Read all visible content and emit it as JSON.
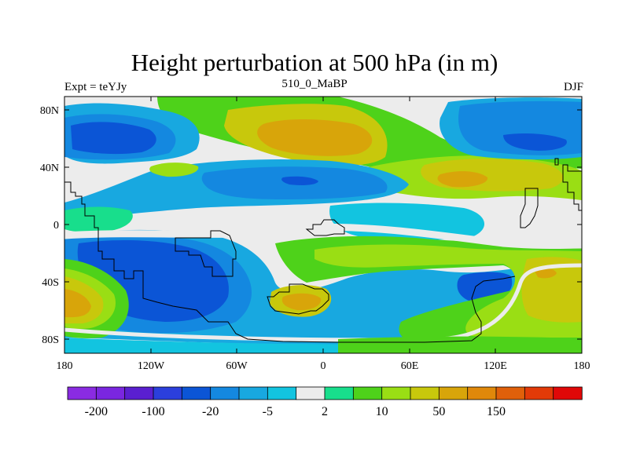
{
  "title": "Height perturbation at 500 hPa (in m)",
  "subtitle_left": "Expt = teYJy",
  "subtitle_center": "510_0_MaBP",
  "subtitle_right": "DJF",
  "map": {
    "y_ticks": [
      "80N",
      "40N",
      "0",
      "40S",
      "80S"
    ],
    "x_ticks": [
      "180",
      "120W",
      "60W",
      "0",
      "60E",
      "120E",
      "180"
    ]
  },
  "colorbar": {
    "colors": [
      "#8a2be2",
      "#7a26e0",
      "#5a1fd0",
      "#2b3fdc",
      "#0b55d6",
      "#1488e0",
      "#18a8e0",
      "#12c4e0",
      "#ececec",
      "#18de8c",
      "#4ed21a",
      "#9ade14",
      "#c8c80c",
      "#d8a50a",
      "#e0880a",
      "#e0600a",
      "#e23a08",
      "#e00808"
    ],
    "labels": [
      {
        "text": "-200",
        "boundary": 1
      },
      {
        "text": "-100",
        "boundary": 3
      },
      {
        "text": "-20",
        "boundary": 5
      },
      {
        "text": "-5",
        "boundary": 7
      },
      {
        "text": "2",
        "boundary": 9
      },
      {
        "text": "10",
        "boundary": 11
      },
      {
        "text": "50",
        "boundary": 13
      },
      {
        "text": "150",
        "boundary": 15
      }
    ]
  }
}
